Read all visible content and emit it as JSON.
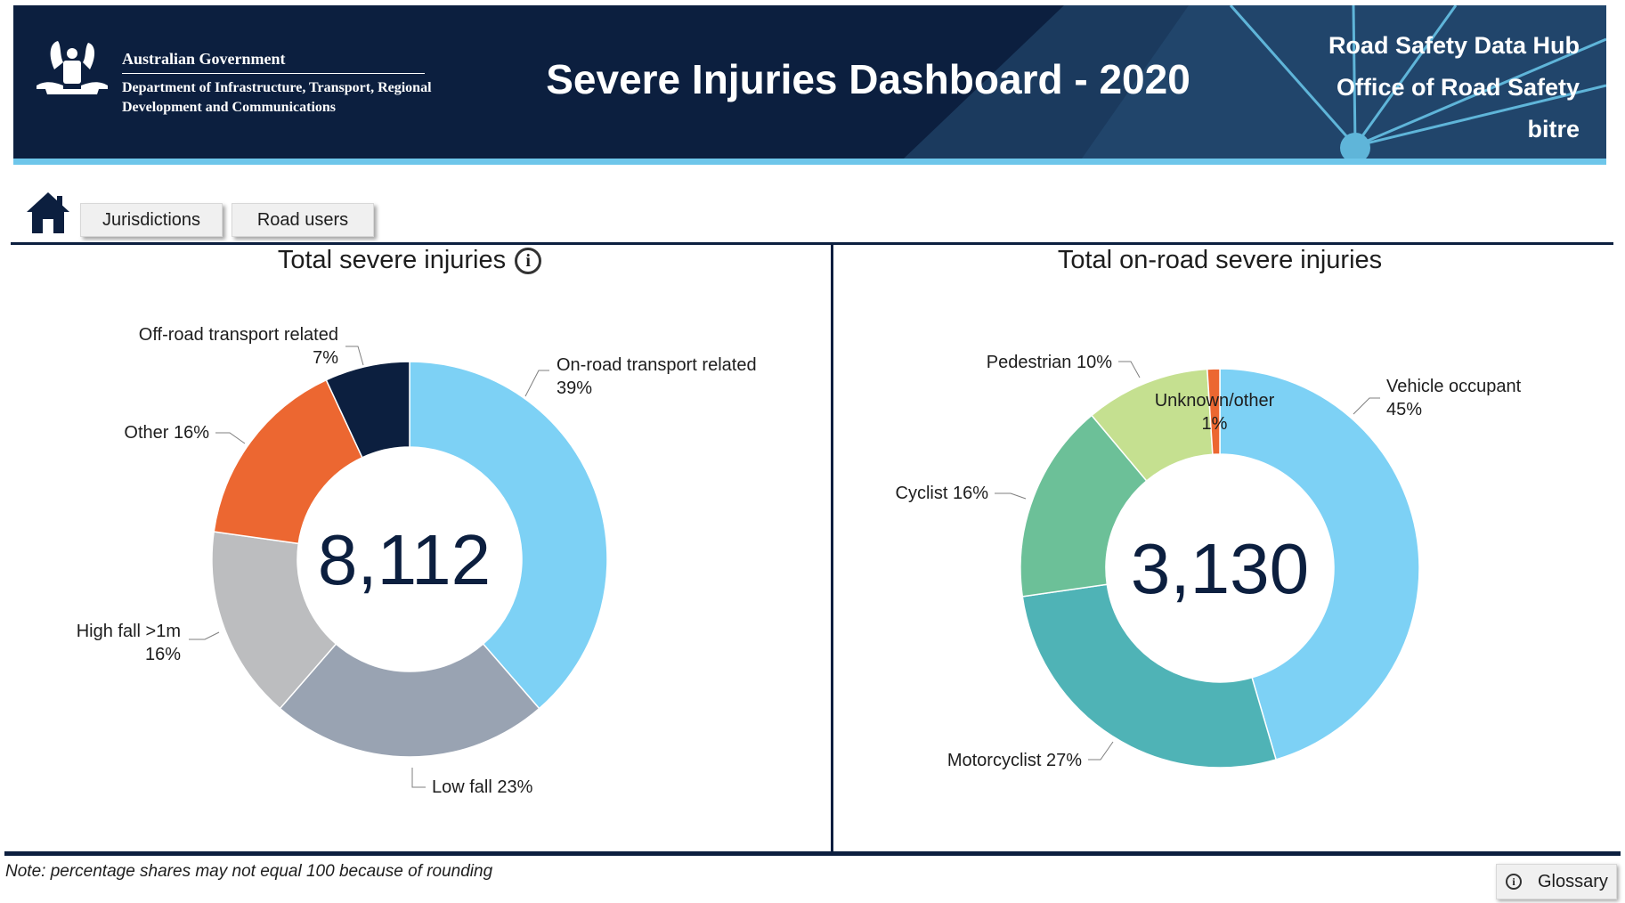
{
  "header": {
    "gov_name": "Australian Government",
    "gov_dept": "Department of Infrastructure, Transport, Regional Development and Communications",
    "title": "Severe Injuries Dashboard - 2020",
    "hub_lines": [
      "Road Safety Data Hub",
      "Office of Road Safety",
      "bitre"
    ]
  },
  "nav": {
    "home_icon": "home-icon",
    "buttons": [
      "Jurisdictions",
      "Road users"
    ]
  },
  "colors": {
    "navy": "#0c1f3f",
    "accent_blue": "#6ec6ea"
  },
  "chart_data": [
    {
      "type": "pie",
      "donut": true,
      "title": "Total severe injuries",
      "center_value": "8,112",
      "slices": [
        {
          "label": "On-road transport related",
          "value": 39,
          "label_text": [
            "On-road transport related",
            "39%"
          ],
          "color": "#7dd1f5"
        },
        {
          "label": "Low fall",
          "value": 23,
          "label_text": [
            "Low fall 23%"
          ],
          "color": "#99a3b2"
        },
        {
          "label": "High fall >1m",
          "value": 16,
          "label_text": [
            "High fall >1m",
            "16%"
          ],
          "color": "#bcbdbf"
        },
        {
          "label": "Other",
          "value": 16,
          "label_text": [
            "Other 16%"
          ],
          "color": "#ec6731"
        },
        {
          "label": "Off-road transport related",
          "value": 7,
          "label_text": [
            "Off-road transport related",
            "7%"
          ],
          "color": "#0c1f3f"
        }
      ]
    },
    {
      "type": "pie",
      "donut": true,
      "title": "Total on-road severe injuries",
      "center_value": "3,130",
      "slices": [
        {
          "label": "Vehicle occupant",
          "value": 45,
          "label_text": [
            "Vehicle occupant",
            "45%"
          ],
          "color": "#7dd1f5"
        },
        {
          "label": "Motorcyclist",
          "value": 27,
          "label_text": [
            "Motorcyclist 27%"
          ],
          "color": "#4fb3b6"
        },
        {
          "label": "Cyclist",
          "value": 16,
          "label_text": [
            "Cyclist 16%"
          ],
          "color": "#6cc098"
        },
        {
          "label": "Pedestrian",
          "value": 10,
          "label_text": [
            "Pedestrian 10%"
          ],
          "color": "#c5e090"
        },
        {
          "label": "Unknown/other",
          "value": 1,
          "label_text": [
            "Unknown/other",
            "1%"
          ],
          "color": "#ec6731"
        }
      ]
    }
  ],
  "footer": {
    "note": "Note: percentage shares may not equal 100 because of rounding",
    "glossary_label": "Glossary"
  }
}
